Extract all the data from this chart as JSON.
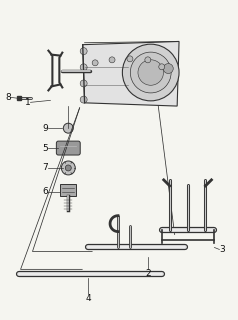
{
  "bg_color": "#f5f5f0",
  "line_color": "#333333",
  "label_color": "#111111",
  "fig_width": 2.38,
  "fig_height": 3.2,
  "dpi": 100
}
